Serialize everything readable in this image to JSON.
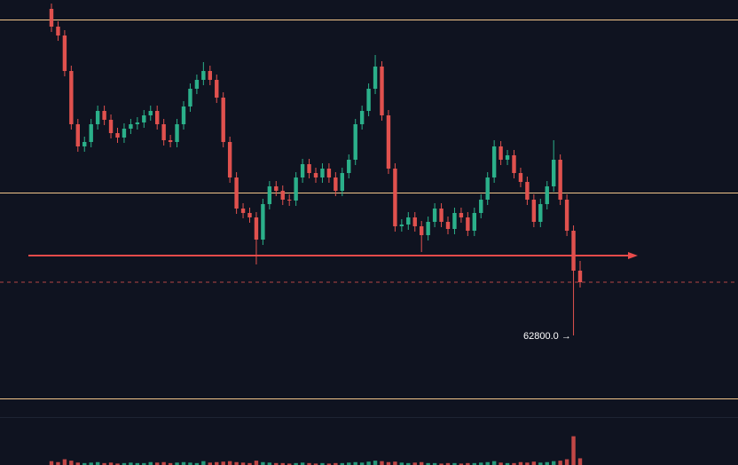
{
  "chart_data": {
    "type": "candlestick",
    "open": [
      66480,
      66280,
      66180,
      65780,
      65180,
      64930,
      64980,
      65180,
      65330,
      65230,
      65080,
      65030,
      65130,
      65180,
      65200,
      65280,
      65330,
      65180,
      65000,
      64980,
      65180,
      65380,
      65580,
      65680,
      65780,
      65680,
      65480,
      64980,
      64580,
      64230,
      64180,
      64130,
      63880,
      64280,
      64480,
      64430,
      64330,
      64320,
      64580,
      64730,
      64630,
      64580,
      64680,
      64580,
      64430,
      64630,
      64780,
      65180,
      65330,
      65580,
      65830,
      65280,
      64680,
      64030,
      64050,
      64130,
      64030,
      63930,
      64080,
      64230,
      64080,
      64000,
      64180,
      64130,
      63980,
      64180,
      64330,
      64580,
      64930,
      64780,
      64830,
      64630,
      64530,
      64330,
      64080,
      64280,
      64480,
      64780,
      64330,
      63980,
      63530
    ],
    "high": [
      66540,
      66340,
      66240,
      65840,
      65240,
      65040,
      65240,
      65390,
      65390,
      65290,
      65140,
      65190,
      65240,
      65260,
      65340,
      65390,
      65390,
      65240,
      65060,
      65240,
      65440,
      65640,
      65740,
      65880,
      65840,
      65740,
      65540,
      65040,
      64640,
      64290,
      64240,
      64190,
      64340,
      64540,
      64540,
      64490,
      64390,
      64640,
      64790,
      64790,
      64690,
      64740,
      64740,
      64640,
      64690,
      64840,
      65240,
      65390,
      65640,
      65960,
      65890,
      65340,
      64740,
      64110,
      64190,
      64190,
      64090,
      64140,
      64290,
      64290,
      64140,
      64240,
      64240,
      64190,
      64240,
      64390,
      64640,
      65000,
      64990,
      64890,
      64890,
      64690,
      64590,
      64390,
      64340,
      64540,
      65000,
      64840,
      64390,
      64040,
      63640
    ],
    "low": [
      66220,
      66120,
      65720,
      65120,
      64870,
      64870,
      64920,
      65120,
      65170,
      65020,
      64970,
      64970,
      65070,
      65120,
      65140,
      65220,
      65120,
      64940,
      64920,
      64920,
      65120,
      65320,
      65520,
      65620,
      65620,
      65420,
      64920,
      64520,
      64170,
      64120,
      64070,
      63600,
      63820,
      64220,
      64370,
      64270,
      64260,
      64260,
      64520,
      64570,
      64520,
      64520,
      64520,
      64370,
      64370,
      64570,
      64720,
      65120,
      65270,
      65520,
      65220,
      64620,
      63970,
      63970,
      63990,
      63970,
      63740,
      63870,
      64020,
      64020,
      63940,
      63940,
      64070,
      63920,
      63920,
      64120,
      64270,
      64520,
      64720,
      64720,
      64570,
      64470,
      64270,
      64020,
      64020,
      64220,
      64420,
      64270,
      63920,
      62800,
      63340
    ],
    "close": [
      66280,
      66180,
      65780,
      65180,
      64930,
      64980,
      65180,
      65330,
      65230,
      65080,
      65030,
      65130,
      65180,
      65200,
      65280,
      65330,
      65180,
      65000,
      64980,
      65180,
      65380,
      65580,
      65680,
      65780,
      65680,
      65480,
      64980,
      64580,
      64230,
      64180,
      64130,
      63880,
      64280,
      64480,
      64430,
      64330,
      64320,
      64580,
      64730,
      64630,
      64580,
      64680,
      64580,
      64430,
      64630,
      64780,
      65180,
      65330,
      65580,
      65830,
      65280,
      64680,
      64030,
      64050,
      64130,
      64030,
      63930,
      64080,
      64230,
      64080,
      64000,
      64180,
      64130,
      63980,
      64180,
      64330,
      64580,
      64930,
      64780,
      64830,
      64630,
      64530,
      64330,
      64080,
      64280,
      64480,
      64780,
      64330,
      63980,
      63530,
      63400
    ],
    "volume": [
      8,
      6,
      12,
      9,
      5,
      4,
      5,
      6,
      4,
      5,
      3,
      4,
      5,
      4,
      4,
      6,
      5,
      6,
      4,
      5,
      6,
      5,
      4,
      8,
      5,
      6,
      7,
      8,
      6,
      5,
      4,
      9,
      6,
      5,
      4,
      4,
      3,
      4,
      5,
      4,
      3,
      4,
      3,
      4,
      4,
      5,
      6,
      5,
      7,
      9,
      8,
      6,
      7,
      5,
      4,
      5,
      6,
      4,
      4,
      3,
      4,
      4,
      3,
      4,
      4,
      5,
      6,
      8,
      5,
      4,
      4,
      6,
      5,
      7,
      5,
      6,
      8,
      9,
      12,
      60,
      14
    ],
    "ylim": [
      61880,
      66580
    ],
    "volume_lim": [
      0,
      100
    ],
    "levels": [
      66360,
      64410,
      62090
    ],
    "current_price": 63400,
    "target_line": 63700,
    "annotation": {
      "value": 62800,
      "label": "62800.0 →"
    },
    "colors": {
      "up": "#2bb08a",
      "down": "#e0514e",
      "level": "#f2c58a",
      "arrow": "#e84b4b",
      "background": "#0f1320"
    }
  }
}
